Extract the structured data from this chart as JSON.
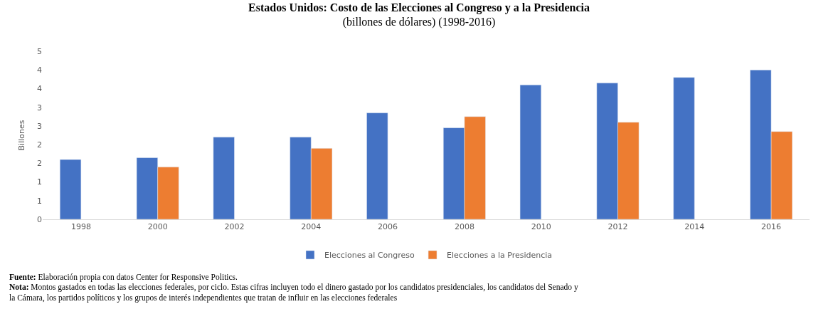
{
  "chart_data": {
    "type": "bar",
    "title": "Estados Unidos: Costo de las Elecciones al Congreso y a la Presidencia",
    "subtitle": "(billones de dólares) (1998-2016)",
    "ylabel": "Billones",
    "categories": [
      "1998",
      "2000",
      "2002",
      "2004",
      "2006",
      "2008",
      "2010",
      "2012",
      "2014",
      "2016"
    ],
    "series": [
      {
        "name": "Elecciones al Congreso",
        "color": "#4472c4",
        "values": [
          1.6,
          1.65,
          2.2,
          2.2,
          2.85,
          2.45,
          3.6,
          3.65,
          3.8,
          4.0
        ]
      },
      {
        "name": "Elecciones a la Presidencia",
        "color": "#ed7d31",
        "values": [
          null,
          1.4,
          null,
          1.9,
          null,
          2.75,
          null,
          2.6,
          null,
          2.35
        ]
      }
    ],
    "ylim": [
      0,
      4.5
    ],
    "yticks": [
      0,
      {
        "value": 0.5,
        "label": "1"
      },
      1,
      {
        "value": 1.5,
        "label": "2"
      },
      2,
      {
        "value": 2.5,
        "label": "3"
      },
      3,
      {
        "value": 3.5,
        "label": "4"
      },
      4,
      {
        "value": 4.5,
        "label": "5"
      }
    ],
    "grid": false,
    "legend": "bottom",
    "annotations": [
      "Fuente: Elaboración propia con datos Center for Responsive Politics.",
      "Nota: Montos gastados en todas las elecciones federales, por ciclo. Estas cifras incluyen todo el dinero gastado por los candidatos presidenciales, los candidatos del Senado y la Cámara, los partidos políticos y los grupos de interés independientes que tratan de influir en las elecciones federales"
    ]
  }
}
